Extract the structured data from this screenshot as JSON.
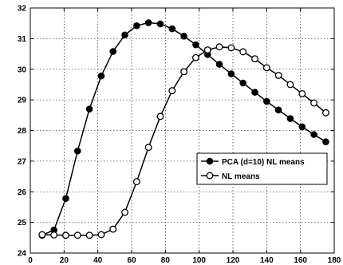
{
  "chart_data": {
    "type": "line",
    "xlim": [
      0,
      180
    ],
    "ylim": [
      24,
      32
    ],
    "xticks": [
      0,
      20,
      40,
      60,
      80,
      100,
      120,
      140,
      160,
      180
    ],
    "yticks": [
      24,
      25,
      26,
      27,
      28,
      29,
      30,
      31,
      32
    ],
    "grid": true,
    "legend_position": "bottom-right",
    "series": [
      {
        "name": "PCA (d=10) NL means",
        "marker": "filled-circle",
        "color": "#000000",
        "x": [
          7,
          14,
          21,
          28,
          35,
          42,
          49,
          56,
          63,
          70,
          77,
          84,
          91,
          98,
          105,
          112,
          119,
          126,
          133,
          140,
          147,
          154,
          161,
          168,
          175
        ],
        "y": [
          24.58,
          24.75,
          25.78,
          27.33,
          28.7,
          29.78,
          30.58,
          31.12,
          31.42,
          31.52,
          31.48,
          31.32,
          31.08,
          30.8,
          30.48,
          30.16,
          29.85,
          29.55,
          29.25,
          28.95,
          28.67,
          28.39,
          28.12,
          27.87,
          27.63
        ]
      },
      {
        "name": "NL means",
        "marker": "open-circle",
        "color": "#000000",
        "x": [
          7,
          14,
          21,
          28,
          35,
          42,
          49,
          56,
          63,
          70,
          77,
          84,
          91,
          98,
          105,
          112,
          119,
          126,
          133,
          140,
          147,
          154,
          161,
          168,
          175
        ],
        "y": [
          24.6,
          24.59,
          24.58,
          24.58,
          24.58,
          24.6,
          24.78,
          25.33,
          26.33,
          27.45,
          28.46,
          29.3,
          29.92,
          30.38,
          30.63,
          30.73,
          30.7,
          30.57,
          30.34,
          30.05,
          29.8,
          29.5,
          29.2,
          28.9,
          28.58
        ]
      }
    ]
  }
}
